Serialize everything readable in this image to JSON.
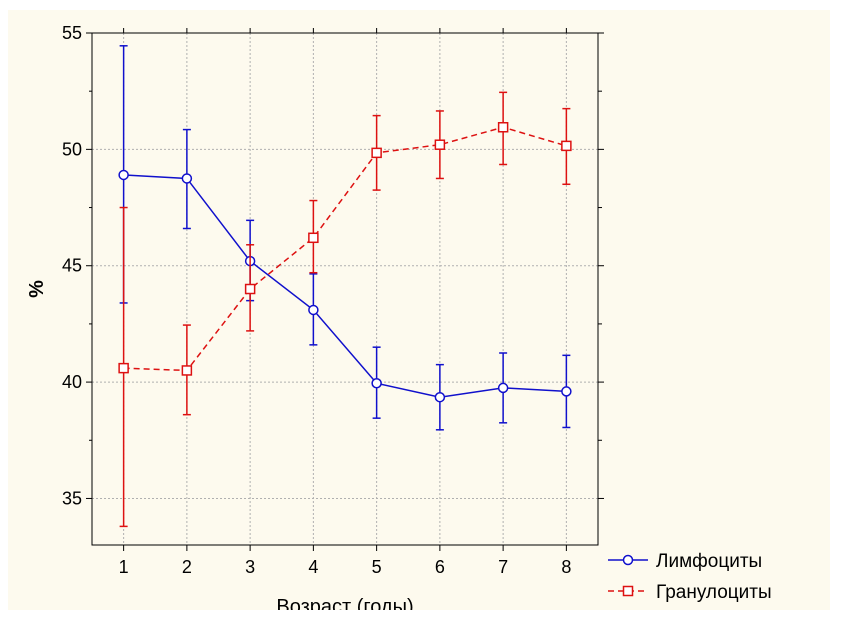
{
  "chart_data": {
    "type": "line",
    "title": "",
    "xlabel": "Возраст (годы)",
    "ylabel": "%",
    "x": [
      1,
      2,
      3,
      4,
      5,
      6,
      7,
      8
    ],
    "x_tick_labels": [
      "1",
      "2",
      "3",
      "4",
      "5",
      "6",
      "7",
      "8"
    ],
    "xlim": [
      0.5,
      8.5
    ],
    "ylim": [
      33,
      55
    ],
    "y_ticks": [
      35,
      40,
      45,
      50,
      55
    ],
    "y_tick_labels": [
      "35",
      "40",
      "45",
      "50",
      "55"
    ],
    "grid": true,
    "legend_position": "bottom-right-outside",
    "series": [
      {
        "name": "Лимфоциты",
        "color": "#1010cc",
        "line_style": "solid",
        "marker": "circle",
        "values": [
          48.9,
          48.75,
          45.2,
          43.1,
          39.95,
          39.35,
          39.75,
          39.6
        ],
        "error_low": [
          43.4,
          46.6,
          43.5,
          41.6,
          38.45,
          37.95,
          38.25,
          38.05
        ],
        "error_high": [
          54.45,
          50.85,
          46.95,
          44.65,
          41.5,
          40.75,
          41.25,
          41.15
        ]
      },
      {
        "name": "Гранулоциты",
        "color": "#dd1111",
        "line_style": "dashed",
        "marker": "square",
        "values": [
          40.6,
          40.5,
          44.0,
          46.2,
          49.85,
          50.2,
          50.95,
          50.15
        ],
        "error_low": [
          33.8,
          38.6,
          42.2,
          44.7,
          48.25,
          48.75,
          49.35,
          48.5
        ],
        "error_high": [
          47.5,
          42.45,
          45.9,
          47.8,
          51.45,
          51.65,
          52.45,
          51.75
        ]
      }
    ]
  }
}
